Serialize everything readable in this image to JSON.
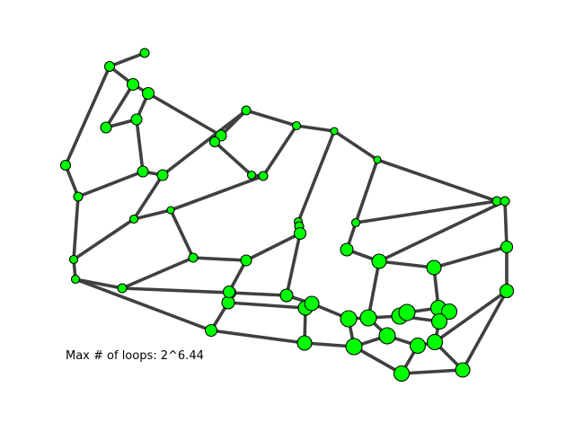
{
  "caption": "Max # of loops: 2^6.44",
  "colors": {
    "node_fill": "#00ff00",
    "node_stroke": "#000000",
    "edge": "#404040",
    "background": "#ffffff"
  },
  "graph": {
    "node_count": 61,
    "edges": [
      [
        0,
        1
      ],
      [
        0,
        2
      ],
      [
        0,
        6
      ],
      [
        1,
        10
      ],
      [
        2,
        3
      ],
      [
        3,
        4
      ],
      [
        4,
        5
      ],
      [
        4,
        8
      ],
      [
        5,
        7
      ],
      [
        6,
        7
      ],
      [
        6,
        17
      ],
      [
        7,
        8
      ],
      [
        8,
        9
      ],
      [
        8,
        14
      ],
      [
        9,
        10
      ],
      [
        9,
        12
      ],
      [
        10,
        11
      ],
      [
        11,
        12
      ],
      [
        12,
        13
      ],
      [
        13,
        14
      ],
      [
        13,
        15
      ],
      [
        14,
        16
      ],
      [
        16,
        17
      ],
      [
        16,
        24
      ],
      [
        17,
        18
      ],
      [
        18,
        19
      ],
      [
        18,
        23
      ],
      [
        19,
        20
      ],
      [
        19,
        22
      ],
      [
        20,
        21
      ],
      [
        21,
        60
      ],
      [
        21,
        25
      ],
      [
        22,
        23
      ],
      [
        22,
        31
      ],
      [
        23,
        24
      ],
      [
        23,
        32
      ],
      [
        25,
        26
      ],
      [
        25,
        45
      ],
      [
        26,
        27
      ],
      [
        26,
        30
      ],
      [
        27,
        28
      ],
      [
        27,
        56
      ],
      [
        28,
        29
      ],
      [
        29,
        30
      ],
      [
        30,
        31
      ],
      [
        31,
        32
      ],
      [
        31,
        35
      ],
      [
        32,
        33
      ],
      [
        33,
        34
      ],
      [
        34,
        35
      ],
      [
        35,
        36
      ],
      [
        36,
        37
      ],
      [
        37,
        38
      ],
      [
        37,
        43
      ],
      [
        38,
        39
      ],
      [
        39,
        40
      ],
      [
        40,
        41
      ],
      [
        41,
        42
      ],
      [
        42,
        43
      ],
      [
        42,
        47
      ],
      [
        43,
        44
      ],
      [
        44,
        45
      ],
      [
        45,
        46
      ],
      [
        46,
        47
      ],
      [
        46,
        50
      ],
      [
        47,
        48
      ],
      [
        48,
        49
      ],
      [
        48,
        53
      ],
      [
        49,
        50
      ],
      [
        50,
        51
      ],
      [
        51,
        52
      ],
      [
        52,
        53
      ],
      [
        53,
        54
      ],
      [
        54,
        55
      ],
      [
        55,
        56
      ],
      [
        56,
        57
      ],
      [
        57,
        58
      ],
      [
        57,
        60
      ],
      [
        58,
        59
      ],
      [
        59,
        60
      ],
      [
        2,
        9
      ],
      [
        28,
        33
      ]
    ]
  }
}
